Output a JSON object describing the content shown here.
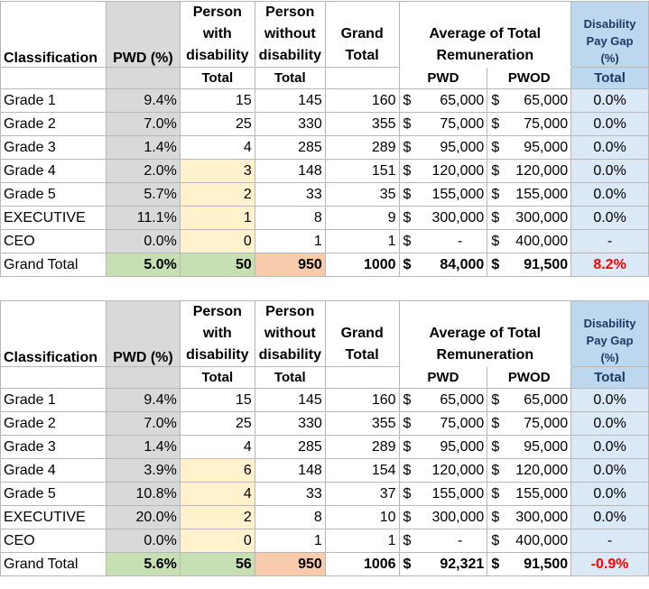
{
  "headers": {
    "classification": "Classification",
    "pwd_pct": "PWD (%)",
    "pwd_l1": "Person",
    "pwd_l2": "with",
    "pwd_l3": "disability",
    "pwod_l1": "Person",
    "pwod_l2": "without",
    "pwod_l3": "disability",
    "grand_l1": "Grand",
    "grand_l2": "Total",
    "remun_l1": "Average of Total",
    "remun_l2": "Remuneration",
    "gap_l1": "Disability",
    "gap_l2": "Pay Gap",
    "gap_l3": "(%)",
    "sub_total": "Total",
    "sub_pwd": "PWD",
    "sub_pwod": "PWOD",
    "currency": "$"
  },
  "tables": [
    {
      "rows": [
        {
          "name": "Grade 1",
          "pwd_pct": "9.4%",
          "pwd": "15",
          "pwod": "145",
          "grand": "160",
          "avg_pwd": "65,000",
          "avg_pwod": "65,000",
          "gap": "0.0%"
        },
        {
          "name": "Grade 2",
          "pwd_pct": "7.0%",
          "pwd": "25",
          "pwod": "330",
          "grand": "355",
          "avg_pwd": "75,000",
          "avg_pwod": "75,000",
          "gap": "0.0%"
        },
        {
          "name": "Grade 3",
          "pwd_pct": "1.4%",
          "pwd": "4",
          "pwod": "285",
          "grand": "289",
          "avg_pwd": "95,000",
          "avg_pwod": "95,000",
          "gap": "0.0%"
        },
        {
          "name": "Grade 4",
          "pwd_pct": "2.0%",
          "pwd": "3",
          "pwod": "148",
          "grand": "151",
          "avg_pwd": "120,000",
          "avg_pwod": "120,000",
          "gap": "0.0%"
        },
        {
          "name": "Grade 5",
          "pwd_pct": "5.7%",
          "pwd": "2",
          "pwod": "33",
          "grand": "35",
          "avg_pwd": "155,000",
          "avg_pwod": "155,000",
          "gap": "0.0%"
        },
        {
          "name": "EXECUTIVE",
          "pwd_pct": "11.1%",
          "pwd": "1",
          "pwod": "8",
          "grand": "9",
          "avg_pwd": "300,000",
          "avg_pwod": "300,000",
          "gap": "0.0%"
        },
        {
          "name": "CEO",
          "pwd_pct": "0.0%",
          "pwd": "0",
          "pwod": "1",
          "grand": "1",
          "avg_pwd": "-",
          "avg_pwod": "400,000",
          "gap": "-"
        }
      ],
      "total": {
        "name": "Grand Total",
        "pwd_pct": "5.0%",
        "pwd": "50",
        "pwod": "950",
        "grand": "1000",
        "avg_pwd": "84,000",
        "avg_pwod": "91,500",
        "gap": "8.2%"
      }
    },
    {
      "rows": [
        {
          "name": "Grade 1",
          "pwd_pct": "9.4%",
          "pwd": "15",
          "pwod": "145",
          "grand": "160",
          "avg_pwd": "65,000",
          "avg_pwod": "65,000",
          "gap": "0.0%"
        },
        {
          "name": "Grade 2",
          "pwd_pct": "7.0%",
          "pwd": "25",
          "pwod": "330",
          "grand": "355",
          "avg_pwd": "75,000",
          "avg_pwod": "75,000",
          "gap": "0.0%"
        },
        {
          "name": "Grade 3",
          "pwd_pct": "1.4%",
          "pwd": "4",
          "pwod": "285",
          "grand": "289",
          "avg_pwd": "95,000",
          "avg_pwod": "95,000",
          "gap": "0.0%"
        },
        {
          "name": "Grade 4",
          "pwd_pct": "3.9%",
          "pwd": "6",
          "pwod": "148",
          "grand": "154",
          "avg_pwd": "120,000",
          "avg_pwod": "120,000",
          "gap": "0.0%"
        },
        {
          "name": "Grade 5",
          "pwd_pct": "10.8%",
          "pwd": "4",
          "pwod": "33",
          "grand": "37",
          "avg_pwd": "155,000",
          "avg_pwod": "155,000",
          "gap": "0.0%"
        },
        {
          "name": "EXECUTIVE",
          "pwd_pct": "20.0%",
          "pwd": "2",
          "pwod": "8",
          "grand": "10",
          "avg_pwd": "300,000",
          "avg_pwod": "300,000",
          "gap": "0.0%"
        },
        {
          "name": "CEO",
          "pwd_pct": "0.0%",
          "pwd": "0",
          "pwod": "1",
          "grand": "1",
          "avg_pwd": "-",
          "avg_pwod": "400,000",
          "gap": "-"
        }
      ],
      "total": {
        "name": "Grand Total",
        "pwd_pct": "5.6%",
        "pwd": "56",
        "pwod": "950",
        "grand": "1006",
        "avg_pwd": "92,321",
        "avg_pwod": "91,500",
        "gap": "-0.9%"
      }
    }
  ]
}
